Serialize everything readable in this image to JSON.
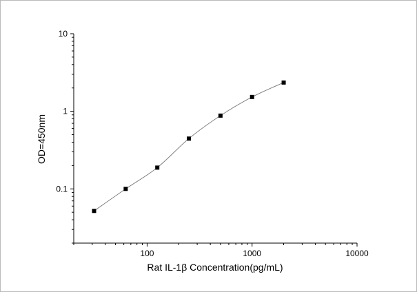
{
  "chart_data": {
    "type": "scatter",
    "xlabel": "Rat IL-1β  Concentration(pg/mL)",
    "ylabel": "OD=450nm",
    "xscale": "log",
    "yscale": "log",
    "xlim": [
      20,
      10000
    ],
    "ylim": [
      0.02,
      10
    ],
    "x_ticks": [
      100,
      1000,
      10000
    ],
    "x_tick_labels": [
      "100",
      "1000",
      "10000"
    ],
    "y_ticks": [
      0.1,
      1,
      10
    ],
    "y_tick_labels": [
      "0.1",
      "1",
      "10"
    ],
    "grid": false,
    "legend": "none",
    "series": [
      {
        "x": [
          31.25,
          62.5,
          125,
          250,
          500,
          1000,
          2000
        ],
        "y": [
          0.052,
          0.1,
          0.188,
          0.445,
          0.88,
          1.53,
          2.35
        ],
        "marker": "square",
        "line": "smooth",
        "marker_color": "#000000",
        "line_color": "#808080"
      }
    ]
  }
}
